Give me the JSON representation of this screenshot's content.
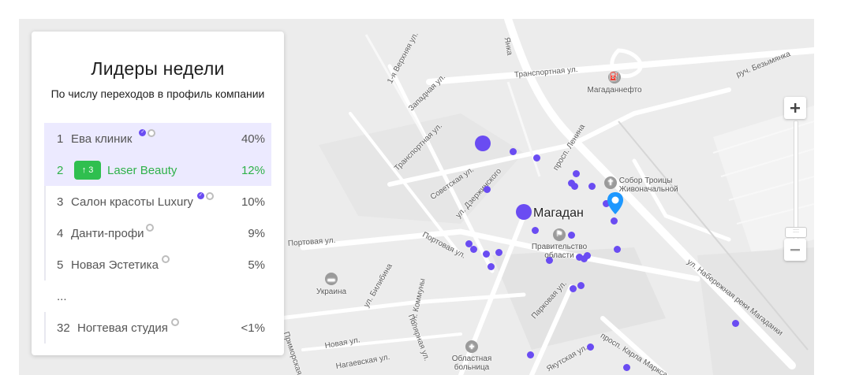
{
  "leaderboard": {
    "title": "Лидеры недели",
    "subtitle": "По числу переходов в профиль компании",
    "rows": [
      {
        "rank": "1",
        "name": "Ева клиник",
        "percent": "40%"
      },
      {
        "rank": "2",
        "name": "Laser Beauty",
        "percent": "12%",
        "change": "3"
      },
      {
        "rank": "3",
        "name": "Салон красоты Luxury",
        "percent": "10%"
      },
      {
        "rank": "4",
        "name": "Данти-профи",
        "percent": "9%"
      },
      {
        "rank": "5",
        "name": "Новая Эстетика",
        "percent": "5%"
      }
    ],
    "ellipsis": "...",
    "last_row": {
      "rank": "32",
      "name": "Ногтевая студия",
      "percent": "<1%"
    },
    "colors": {
      "accent": "#6a4cf2",
      "growth": "#2fb14a",
      "highlight": "#eceaff"
    }
  },
  "map": {
    "city": "Магадан",
    "streets": [
      "Транспортная ул.",
      "Западная ул.",
      "1-я Верхняя ул.",
      "Транспортная ул.",
      "Советская ул.",
      "ул. Дзержинского",
      "просп. Ленина",
      "Портовая ул.",
      "Портовая ул.",
      "Парковая ул.",
      "ул. Набережная реки Магаданки",
      "ул. Билибина",
      "ул. Коммуны",
      "Полярная ул.",
      "Приморская ул.",
      "Новая ул.",
      "Нагаевская ул.",
      "Якутская ул.",
      "просп. Карла Маркса",
      "руч. Безымянка",
      "Янка"
    ],
    "pois": {
      "gas_station": "Магаданнефто",
      "cathedral": "Собор Троицы Живоначальной",
      "government": "Правительство области",
      "hotel": "Украина",
      "hospital": "Областная больница"
    },
    "zoom_in_icon": "plus-icon",
    "zoom_out_icon": "minus-icon"
  }
}
